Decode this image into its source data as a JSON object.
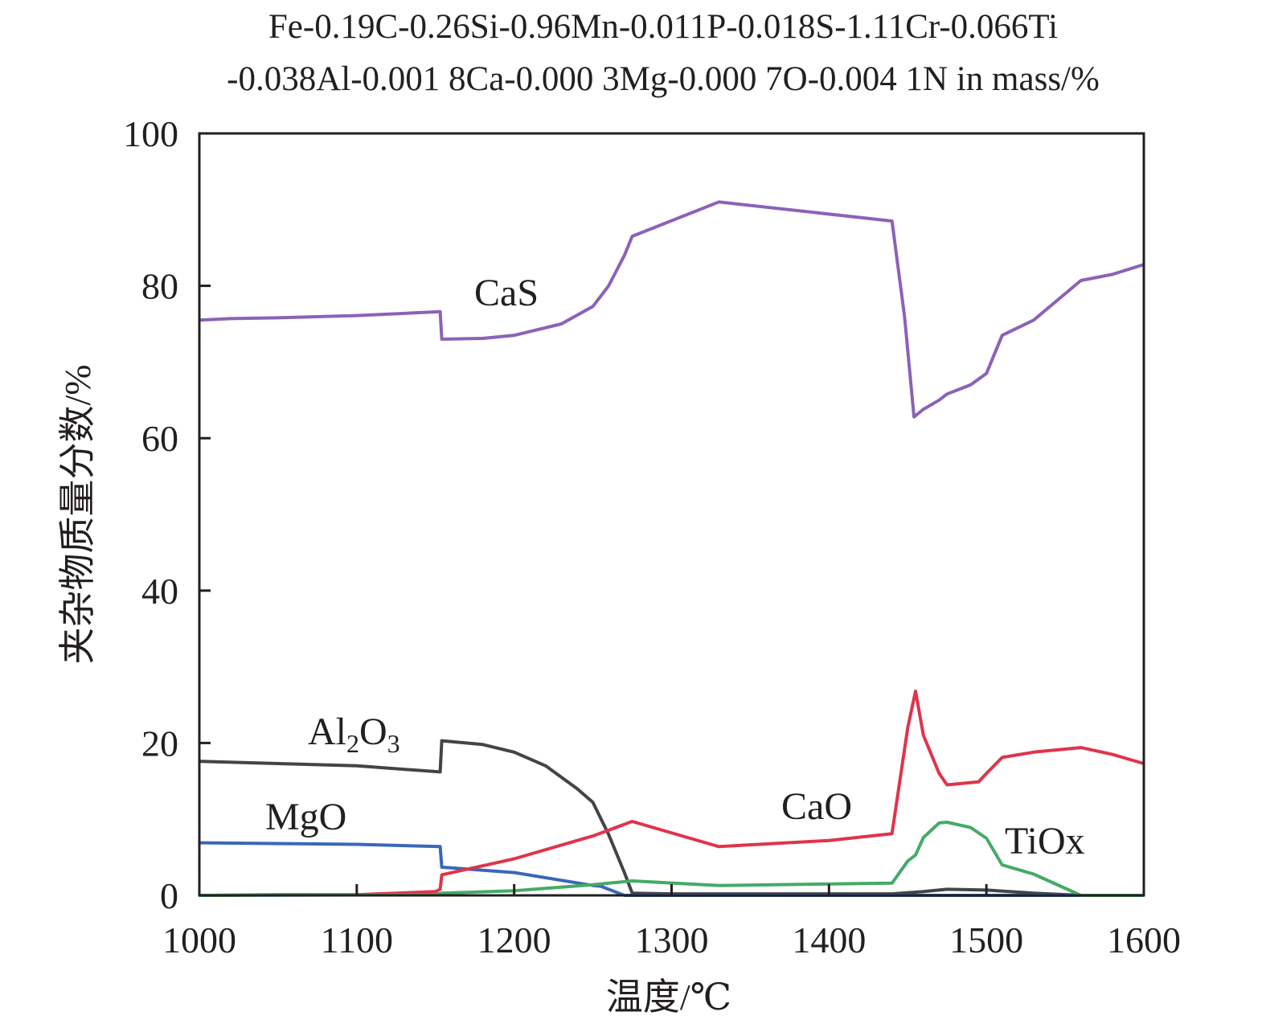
{
  "chart_data": {
    "type": "line",
    "title_lines": [
      "Fe-0.19C-0.26Si-0.96Mn-0.011P-0.018S-1.11Cr-0.066Ti",
      "-0.038Al-0.001 8Ca-0.000 3Mg-0.000 7O-0.004 1N in mass/%"
    ],
    "xlabel": "温度/℃",
    "ylabel": "夹杂物质量分数/%",
    "xlim": [
      1000,
      1600
    ],
    "ylim": [
      0,
      100
    ],
    "xticks": [
      1000,
      1100,
      1200,
      1300,
      1400,
      1500,
      1600
    ],
    "yticks": [
      0,
      20,
      40,
      60,
      80,
      100
    ],
    "grid": false,
    "series": [
      {
        "name": "CaS",
        "color": "#8b62b8",
        "x": [
          1000,
          1020,
          1050,
          1100,
          1153,
          1154,
          1180,
          1200,
          1230,
          1250,
          1260,
          1270,
          1275,
          1330,
          1440,
          1448,
          1454,
          1460,
          1470,
          1475,
          1490,
          1500,
          1510,
          1530,
          1560,
          1580,
          1600
        ],
        "y": [
          75.5,
          75.7,
          75.8,
          76.1,
          76.6,
          73.0,
          73.1,
          73.5,
          75.0,
          77.3,
          80.0,
          84.0,
          86.5,
          91.0,
          88.5,
          76.0,
          62.8,
          63.8,
          65.0,
          65.8,
          67.0,
          68.5,
          73.5,
          75.5,
          80.7,
          81.5,
          82.8
        ]
      },
      {
        "name": "Al2O3",
        "color": "#434448",
        "x": [
          1000,
          1050,
          1100,
          1153,
          1154,
          1180,
          1200,
          1220,
          1240,
          1250,
          1260,
          1270,
          1275,
          1300,
          1440,
          1460,
          1475,
          1500,
          1530,
          1560,
          1600
        ],
        "y": [
          17.6,
          17.3,
          17.0,
          16.2,
          20.3,
          19.8,
          18.8,
          17.0,
          14.0,
          12.2,
          8.0,
          3.0,
          0.3,
          0.2,
          0.2,
          0.5,
          0.8,
          0.7,
          0.3,
          0.0,
          0.0
        ]
      },
      {
        "name": "MgO",
        "color": "#3a67b9",
        "x": [
          1000,
          1100,
          1153,
          1154,
          1200,
          1250,
          1255,
          1270,
          1600
        ],
        "y": [
          6.9,
          6.7,
          6.4,
          3.7,
          3.0,
          1.3,
          1.2,
          0.0,
          0.0
        ]
      },
      {
        "name": "CaO",
        "color": "#e0344a",
        "x": [
          1000,
          1050,
          1100,
          1150,
          1153,
          1154,
          1200,
          1250,
          1275,
          1330,
          1400,
          1440,
          1450,
          1455,
          1460,
          1470,
          1475,
          1495,
          1500,
          1510,
          1530,
          1560,
          1580,
          1600
        ],
        "y": [
          0.0,
          0.1,
          0.1,
          0.5,
          0.8,
          2.7,
          4.8,
          7.8,
          9.7,
          6.4,
          7.2,
          8.1,
          22.0,
          26.8,
          21.0,
          16.0,
          14.5,
          14.9,
          16.0,
          18.1,
          18.8,
          19.4,
          18.5,
          17.3
        ]
      },
      {
        "name": "TiOx",
        "color": "#45aa66",
        "x": [
          1000,
          1150,
          1154,
          1200,
          1250,
          1275,
          1330,
          1440,
          1450,
          1455,
          1460,
          1470,
          1475,
          1490,
          1500,
          1510,
          1530,
          1560,
          1600
        ],
        "y": [
          0.0,
          0.1,
          0.3,
          0.6,
          1.4,
          1.9,
          1.3,
          1.6,
          4.5,
          5.3,
          7.6,
          9.5,
          9.6,
          8.9,
          7.5,
          4.0,
          2.8,
          0.0,
          0.0
        ]
      }
    ],
    "annotations": {
      "CaS": "CaS",
      "Al2O3_main": "Al",
      "Al2O3_sub1": "2",
      "Al2O3_mid": "O",
      "Al2O3_sub2": "3",
      "MgO": "MgO",
      "CaO": "CaO",
      "TiOx": "TiOx"
    }
  }
}
